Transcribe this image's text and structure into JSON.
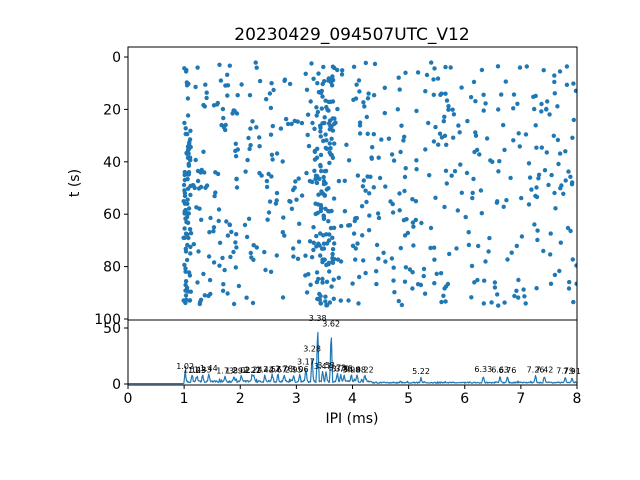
{
  "title": "20230429_094507UTC_V12",
  "colors": {
    "series": "#1f77b4",
    "axis": "#000000",
    "background": "#ffffff"
  },
  "chart_data": [
    {
      "type": "scatter",
      "ylabel": "t (s)",
      "xlabel": "",
      "xlim": [
        0,
        8
      ],
      "ylim": [
        0,
        100
      ],
      "y_inverted": true,
      "yticks": [
        0,
        20,
        40,
        60,
        80,
        100
      ],
      "xticks": [
        0,
        1,
        2,
        3,
        4,
        5,
        6,
        7,
        8
      ],
      "data_x_range": [
        1.0,
        8.0
      ],
      "data_t_range": [
        2,
        95
      ],
      "dense_band_x": [
        3.3,
        3.68
      ],
      "points_spec": {
        "seed": 13,
        "marker_radius": 2.2,
        "components": [
          {
            "n": 500,
            "x": [
              1.0,
              8.0
            ],
            "x_pow": 1.35,
            "t": [
              2,
              95
            ]
          },
          {
            "n": 130,
            "x": [
              3.3,
              3.68
            ],
            "x_pow": 1.0,
            "t": [
              2,
              95
            ]
          },
          {
            "n": 60,
            "x": [
              0.99,
              1.12
            ],
            "x_pow": 1.0,
            "t": [
              30,
              94
            ]
          },
          {
            "n": 90,
            "x": [
              4.0,
              8.0
            ],
            "x_pow": 1.0,
            "t": [
              2,
              94
            ]
          }
        ]
      }
    },
    {
      "type": "line",
      "xlabel": "IPI (ms)",
      "ylabel": "",
      "xlim": [
        0,
        8
      ],
      "ylim": [
        0,
        57
      ],
      "yticks": [
        0,
        50
      ],
      "xticks": [
        0,
        1,
        2,
        3,
        4,
        5,
        6,
        7,
        8
      ],
      "onset_x": 1.0,
      "baseline_pre_onset": 0.35,
      "noise": {
        "seed": 7,
        "lo_region_split_x": 4.35,
        "amp_left": [
          1.3,
          1.8
        ],
        "amp_right": [
          0.7,
          1.1
        ]
      },
      "peaks": [
        [
          1.02,
          9.0,
          "1.02"
        ],
        [
          1.14,
          6.0,
          "1.14"
        ],
        [
          1.23,
          5.5,
          "1.23"
        ],
        [
          1.33,
          6.0,
          "1.33"
        ],
        [
          1.44,
          7.5,
          "1.44"
        ],
        [
          1.73,
          5.0,
          "1.73"
        ],
        [
          1.89,
          5.0,
          "1.89"
        ],
        [
          2.02,
          5.5,
          "2.02"
        ],
        [
          2.21,
          5.5,
          "2.21"
        ],
        [
          2.24,
          6.0,
          "2.24"
        ],
        [
          2.44,
          6.0,
          "2.44"
        ],
        [
          2.57,
          6.5,
          "2.57"
        ],
        [
          2.67,
          6.0,
          "2.67"
        ],
        [
          2.78,
          7.0,
          "2.78"
        ],
        [
          2.95,
          6.0,
          "2.95"
        ],
        [
          3.06,
          6.5,
          "3.06"
        ],
        [
          3.17,
          13.0,
          "3.17"
        ],
        [
          3.28,
          25.0,
          "3.28"
        ],
        [
          3.38,
          52.0,
          "3.38"
        ],
        [
          3.47,
          9.0,
          "3.47"
        ],
        [
          3.53,
          10.0,
          "3.53"
        ],
        [
          3.62,
          47.0,
          "3.62"
        ],
        [
          3.73,
          8.0,
          "3.73"
        ],
        [
          3.79,
          7.0,
          "3.79"
        ],
        [
          3.85,
          7.0,
          "3.85"
        ],
        [
          3.98,
          6.0,
          "3.98"
        ],
        [
          4.08,
          6.0,
          "4.08"
        ],
        [
          4.22,
          6.0,
          "4.22"
        ],
        [
          5.22,
          4.5,
          "5.22"
        ],
        [
          6.33,
          6.5,
          "6.33"
        ],
        [
          6.63,
          6.0,
          "6.63"
        ],
        [
          6.76,
          5.5,
          "6.76"
        ],
        [
          7.26,
          6.0,
          "7.26"
        ],
        [
          7.42,
          6.0,
          "7.42"
        ],
        [
          7.79,
          5.0,
          "7.79"
        ],
        [
          7.91,
          4.5,
          "7.91"
        ]
      ]
    }
  ]
}
